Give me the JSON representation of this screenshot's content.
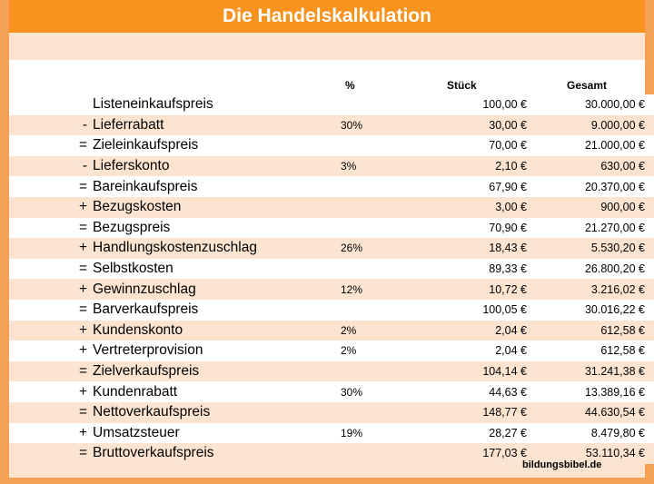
{
  "title": "Die Handelskalkulation",
  "headers": {
    "pct": "%",
    "stueck": "Stück",
    "gesamt": "Gesamt"
  },
  "rows": [
    {
      "op": "",
      "label": "Listeneinkaufspreis",
      "pct": "",
      "stueck": "100,00 €",
      "gesamt": "30.000,00 €"
    },
    {
      "op": "-",
      "label": "Lieferrabatt",
      "pct": "30%",
      "stueck": "30,00 €",
      "gesamt": "9.000,00 €"
    },
    {
      "op": "=",
      "label": "Zieleinkaufspreis",
      "pct": "",
      "stueck": "70,00 €",
      "gesamt": "21.000,00 €"
    },
    {
      "op": "-",
      "label": "Lieferskonto",
      "pct": "3%",
      "stueck": "2,10 €",
      "gesamt": "630,00 €"
    },
    {
      "op": "=",
      "label": "Bareinkaufspreis",
      "pct": "",
      "stueck": "67,90 €",
      "gesamt": "20.370,00 €"
    },
    {
      "op": "+",
      "label": "Bezugskosten",
      "pct": "",
      "stueck": "3,00 €",
      "gesamt": "900,00 €"
    },
    {
      "op": "=",
      "label": "Bezugspreis",
      "pct": "",
      "stueck": "70,90 €",
      "gesamt": "21.270,00 €"
    },
    {
      "op": "+",
      "label": "Handlungskostenzuschlag",
      "pct": "26%",
      "stueck": "18,43 €",
      "gesamt": "5.530,20 €"
    },
    {
      "op": "=",
      "label": "Selbstkosten",
      "pct": "",
      "stueck": "89,33 €",
      "gesamt": "26.800,20 €"
    },
    {
      "op": "+",
      "label": "Gewinnzuschlag",
      "pct": "12%",
      "stueck": "10,72 €",
      "gesamt": "3.216,02 €"
    },
    {
      "op": "=",
      "label": "Barverkaufspreis",
      "pct": "",
      "stueck": "100,05 €",
      "gesamt": "30.016,22 €"
    },
    {
      "op": "+",
      "label": "Kundenskonto",
      "pct": "2%",
      "stueck": "2,04 €",
      "gesamt": "612,58 €"
    },
    {
      "op": "+",
      "label": "Vertreterprovision",
      "pct": "2%",
      "stueck": "2,04 €",
      "gesamt": "612,58 €"
    },
    {
      "op": "=",
      "label": "Zielverkaufspreis",
      "pct": "",
      "stueck": "104,14 €",
      "gesamt": "31.241,38 €"
    },
    {
      "op": "+",
      "label": "Kundenrabatt",
      "pct": "30%",
      "stueck": "44,63 €",
      "gesamt": "13.389,16 €"
    },
    {
      "op": "=",
      "label": "Nettoverkaufspreis",
      "pct": "",
      "stueck": "148,77 €",
      "gesamt": "44.630,54 €"
    },
    {
      "op": "+",
      "label": "Umsatzsteuer",
      "pct": "19%",
      "stueck": "28,27 €",
      "gesamt": "8.479,80 €"
    },
    {
      "op": "=",
      "label": "Bruttoverkaufspreis",
      "pct": "",
      "stueck": "177,03 €",
      "gesamt": "53.110,34 €"
    }
  ],
  "footer": "bildungsbibel.de",
  "colors": {
    "title_bg": "#f7931e",
    "border": "#f4a156",
    "row_alt": "#fce4d0"
  }
}
